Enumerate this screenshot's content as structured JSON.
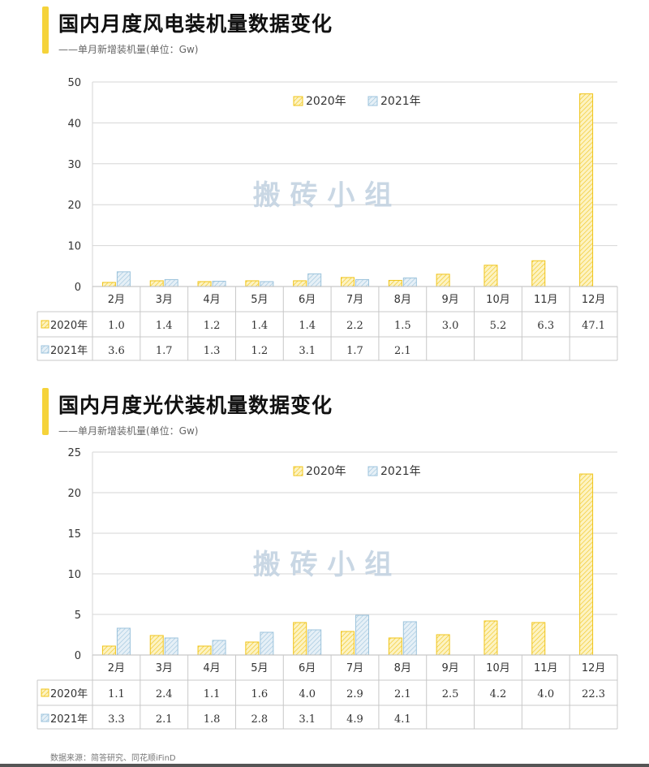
{
  "colors": {
    "accent": "#f5d33a",
    "series_2020": "#f0c419",
    "series_2021": "#9cc3dc",
    "grid": "#d6d6d6",
    "axis_text": "#333333",
    "watermark": "#c4d3e2"
  },
  "watermark": "搬 砖 小 组",
  "footer": "数据来源：简答研究、同花顺iFinD",
  "chart_data": [
    {
      "type": "bar",
      "title": "国内月度风电装机量数据变化",
      "subtitle": "——单月新增装机量(单位：Gw)",
      "categories": [
        "2月",
        "3月",
        "4月",
        "5月",
        "6月",
        "7月",
        "8月",
        "9月",
        "10月",
        "11月",
        "12月"
      ],
      "ylim": [
        0,
        50
      ],
      "yticks": [
        0,
        10,
        20,
        30,
        40,
        50
      ],
      "grid": true,
      "legend_position": "top",
      "series": [
        {
          "name": "2020年",
          "values": [
            1.0,
            1.4,
            1.2,
            1.4,
            1.4,
            2.2,
            1.5,
            3.0,
            5.2,
            6.3,
            47.1
          ],
          "labels": [
            "1.0",
            "1.4",
            "1.2",
            "1.4",
            "1.4",
            "2.2",
            "1.5",
            "3.0",
            "5.2",
            "6.3",
            "47.1"
          ]
        },
        {
          "name": "2021年",
          "values": [
            3.6,
            1.7,
            1.3,
            1.2,
            3.1,
            1.7,
            2.1,
            null,
            null,
            null,
            null
          ],
          "labels": [
            "3.6",
            "1.7",
            "1.3",
            "1.2",
            "3.1",
            "1.7",
            "2.1",
            "",
            "",
            "",
            ""
          ]
        }
      ]
    },
    {
      "type": "bar",
      "title": "国内月度光伏装机量数据变化",
      "subtitle": "——单月新增装机量(单位：Gw)",
      "categories": [
        "2月",
        "3月",
        "4月",
        "5月",
        "6月",
        "7月",
        "8月",
        "9月",
        "10月",
        "11月",
        "12月"
      ],
      "ylim": [
        0,
        25
      ],
      "yticks": [
        0,
        5,
        10,
        15,
        20,
        25
      ],
      "grid": true,
      "legend_position": "top",
      "series": [
        {
          "name": "2020年",
          "values": [
            1.1,
            2.4,
            1.1,
            1.6,
            4.0,
            2.9,
            2.1,
            2.5,
            4.2,
            4.0,
            22.3
          ],
          "labels": [
            "1.1",
            "2.4",
            "1.1",
            "1.6",
            "4.0",
            "2.9",
            "2.1",
            "2.5",
            "4.2",
            "4.0",
            "22.3"
          ]
        },
        {
          "name": "2021年",
          "values": [
            3.3,
            2.1,
            1.8,
            2.8,
            3.1,
            4.9,
            4.1,
            null,
            null,
            null,
            null
          ],
          "labels": [
            "3.3",
            "2.1",
            "1.8",
            "2.8",
            "3.1",
            "4.9",
            "4.1",
            "",
            "",
            "",
            ""
          ]
        }
      ]
    }
  ]
}
